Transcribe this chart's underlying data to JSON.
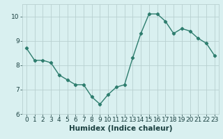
{
  "x": [
    0,
    1,
    2,
    3,
    4,
    5,
    6,
    7,
    8,
    9,
    10,
    11,
    12,
    13,
    14,
    15,
    16,
    17,
    18,
    19,
    20,
    21,
    22,
    23
  ],
  "y": [
    8.7,
    8.2,
    8.2,
    8.1,
    7.6,
    7.4,
    7.2,
    7.2,
    6.7,
    6.4,
    6.8,
    7.1,
    7.2,
    8.3,
    9.3,
    10.1,
    10.1,
    9.8,
    9.3,
    9.5,
    9.4,
    9.1,
    8.9,
    8.4
  ],
  "xlabel": "Humidex (Indice chaleur)",
  "xlim": [
    -0.5,
    23.5
  ],
  "ylim": [
    6,
    10.5
  ],
  "yticks": [
    6,
    7,
    8,
    9,
    10
  ],
  "xticks": [
    0,
    1,
    2,
    3,
    4,
    5,
    6,
    7,
    8,
    9,
    10,
    11,
    12,
    13,
    14,
    15,
    16,
    17,
    18,
    19,
    20,
    21,
    22,
    23
  ],
  "line_color": "#2e7d6e",
  "marker": "D",
  "marker_size": 2.2,
  "line_width": 1.0,
  "bg_color": "#d9f0f0",
  "grid_color": "#b8d0d0",
  "font_color": "#1a4040",
  "xlabel_fontsize": 7.5,
  "tick_fontsize": 6.5
}
